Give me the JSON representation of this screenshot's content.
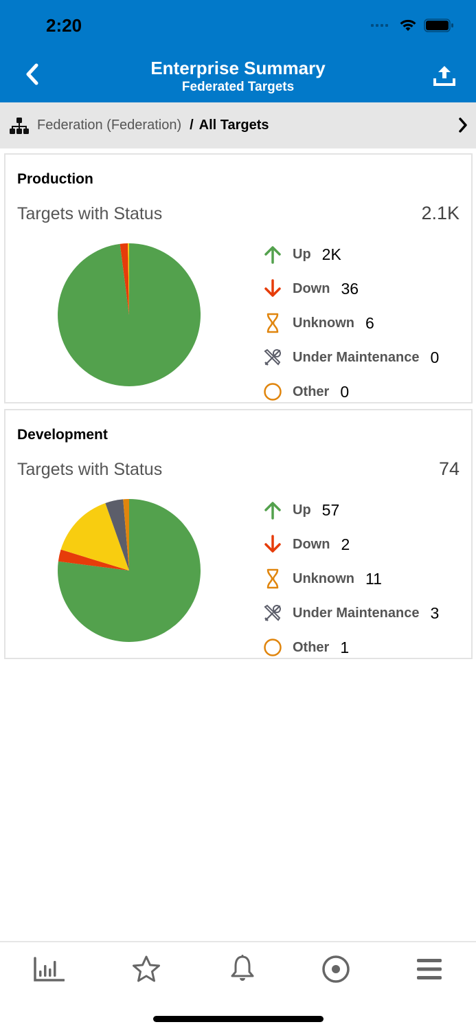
{
  "status_bar": {
    "time": "2:20"
  },
  "header": {
    "title": "Enterprise Summary",
    "subtitle": "Federated Targets",
    "color": "#0279c9"
  },
  "breadcrumb": {
    "parent": "Federation (Federation)",
    "separator": "/",
    "current": "All Targets"
  },
  "cards": [
    {
      "title": "Production",
      "subtitle": "Targets with Status",
      "total": "2.1K",
      "legend": [
        {
          "icon": "arrow-up-icon",
          "label": "Up",
          "value": "2K"
        },
        {
          "icon": "arrow-down-icon",
          "label": "Down",
          "value": "36"
        },
        {
          "icon": "hourglass-icon",
          "label": "Unknown",
          "value": "6"
        },
        {
          "icon": "tools-icon",
          "label": "Under Maintenance",
          "value": "0"
        },
        {
          "icon": "circle-icon",
          "label": "Other",
          "value": "0"
        }
      ]
    },
    {
      "title": "Development",
      "subtitle": "Targets with Status",
      "total": "74",
      "legend": [
        {
          "icon": "arrow-up-icon",
          "label": "Up",
          "value": "57"
        },
        {
          "icon": "arrow-down-icon",
          "label": "Down",
          "value": "2"
        },
        {
          "icon": "hourglass-icon",
          "label": "Unknown",
          "value": "11"
        },
        {
          "icon": "tools-icon",
          "label": "Under Maintenance",
          "value": "3"
        },
        {
          "icon": "circle-icon",
          "label": "Other",
          "value": "1"
        }
      ]
    }
  ],
  "colors": {
    "up": "#53a14d",
    "down": "#e63c0a",
    "unknown": "#f8cd10",
    "maintenance": "#5c5e6a",
    "other": "#e0850d"
  },
  "tabbar": {
    "items": [
      "chart-icon",
      "star-icon",
      "bell-icon",
      "target-icon",
      "menu-icon"
    ]
  },
  "chart_data": [
    {
      "type": "pie",
      "title": "Production - Targets with Status",
      "total": "2.1K",
      "categories": [
        "Up",
        "Down",
        "Unknown",
        "Under Maintenance",
        "Other"
      ],
      "values": [
        2000,
        36,
        6,
        0,
        0
      ],
      "colors": [
        "#53a14d",
        "#e63c0a",
        "#f8cd10",
        "#5c5e6a",
        "#e0850d"
      ],
      "legend_position": "right"
    },
    {
      "type": "pie",
      "title": "Development - Targets with Status",
      "total": "74",
      "categories": [
        "Up",
        "Down",
        "Unknown",
        "Under Maintenance",
        "Other"
      ],
      "values": [
        57,
        2,
        11,
        3,
        1
      ],
      "colors": [
        "#53a14d",
        "#e63c0a",
        "#f8cd10",
        "#5c5e6a",
        "#e0850d"
      ],
      "legend_position": "right"
    }
  ]
}
